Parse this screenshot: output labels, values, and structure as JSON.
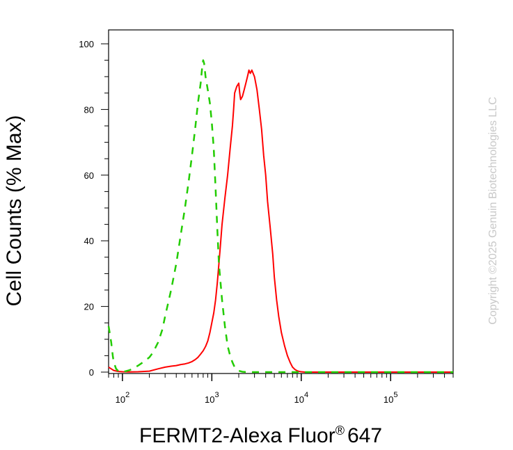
{
  "chart_data": {
    "type": "line",
    "xlabel": "FERMT2-Alexa Fluor",
    "xlabel_mark": "®",
    "xlabel_suffix": "647",
    "ylabel": "Cell Counts (% Max)",
    "x_scale": "log",
    "xlim": [
      70,
      500000
    ],
    "ylim": [
      0,
      105
    ],
    "y_ticks": [
      0,
      20,
      40,
      60,
      80,
      100
    ],
    "x_ticks": [
      {
        "base": "10",
        "exp": "2",
        "value": 100
      },
      {
        "base": "10",
        "exp": "3",
        "value": 1000
      },
      {
        "base": "10",
        "exp": "4",
        "value": 10000
      },
      {
        "base": "10",
        "exp": "5",
        "value": 100000
      }
    ],
    "grid": false,
    "legend": "none",
    "series": [
      {
        "color": "#ff0000",
        "style": "solid",
        "x": [
          70,
          75,
          80,
          90,
          100,
          120,
          150,
          200,
          250,
          300,
          350,
          400,
          450,
          500,
          550,
          600,
          650,
          700,
          750,
          800,
          850,
          900,
          950,
          1000,
          1050,
          1100,
          1150,
          1200,
          1250,
          1300,
          1400,
          1500,
          1600,
          1700,
          1750,
          1800,
          1900,
          2000,
          2050,
          2100,
          2200,
          2300,
          2400,
          2500,
          2550,
          2600,
          2700,
          2800,
          2900,
          3000,
          3100,
          3200,
          3400,
          3600,
          3800,
          4000,
          4200,
          4500,
          4800,
          5000,
          5300,
          5600,
          6000,
          6500,
          7000,
          7500,
          8000,
          8500,
          9000,
          9500,
          10000,
          11000,
          12000,
          15000,
          20000,
          50000,
          100000,
          200000,
          500000
        ],
        "values": [
          1.5,
          1.0,
          0.5,
          0.2,
          0.1,
          0.05,
          0.1,
          0.3,
          1.0,
          1.5,
          1.8,
          2.0,
          2.3,
          2.5,
          2.8,
          3.2,
          3.8,
          4.5,
          5.5,
          6.5,
          7.8,
          9.5,
          12,
          15,
          18,
          22,
          27,
          33,
          39,
          45,
          53,
          60,
          68,
          75,
          80,
          85,
          87,
          88,
          85,
          83,
          84,
          86,
          88,
          90,
          91,
          92,
          91,
          92,
          91,
          90,
          88,
          86,
          80,
          74,
          66,
          60,
          52,
          44,
          36,
          29,
          22,
          17,
          12,
          8,
          5,
          3,
          1.5,
          0.8,
          0.4,
          0.2,
          0.1,
          0.0,
          0.0,
          0.0,
          0.0,
          0.0,
          0.0,
          0.0,
          0.0
        ]
      },
      {
        "color": "#22cc00",
        "style": "dashed",
        "x": [
          70,
          72,
          75,
          78,
          80,
          85,
          90,
          100,
          110,
          120,
          130,
          150,
          170,
          200,
          220,
          250,
          280,
          300,
          350,
          400,
          450,
          500,
          550,
          600,
          650,
          700,
          750,
          780,
          800,
          820,
          850,
          900,
          950,
          1000,
          1050,
          1100,
          1150,
          1200,
          1300,
          1400,
          1500,
          1600,
          1700,
          1800,
          1900,
          2000,
          2200,
          2500,
          3000,
          4000,
          6000,
          10000,
          20000,
          50000,
          100000,
          200000,
          500000
        ],
        "values": [
          14,
          12,
          9,
          5,
          3,
          1,
          0.3,
          0.1,
          0.3,
          0.6,
          1.0,
          2.0,
          3.0,
          4.5,
          6.0,
          9.0,
          13,
          17,
          25,
          33,
          42,
          50,
          58,
          66,
          74,
          82,
          88,
          93,
          95,
          94,
          90,
          86,
          82,
          76,
          68,
          56,
          44,
          33,
          22,
          14,
          8,
          5,
          3,
          1.5,
          0.8,
          0.4,
          0.1,
          0.0,
          0.0,
          0.0,
          0.0,
          0.0,
          0.0,
          0.0,
          0.0,
          0.0,
          0.0
        ]
      }
    ]
  },
  "copyright": "Copyright ©2025 Genuin Biotechnologies LLC"
}
